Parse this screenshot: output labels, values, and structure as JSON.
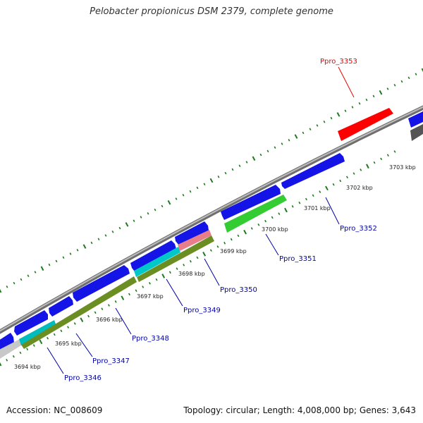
{
  "title": "Pelobacter propionicus DSM 2379, complete genome",
  "footer": {
    "accession": "Accession: NC_008609",
    "topology": "Topology: circular; Length: 4,008,000 bp; Genes: 3,643"
  },
  "colors": {
    "backbone": "#8c8c8c",
    "tick": "#1e7a1e",
    "forward_gene": "#1414e6",
    "label_default": "#0000aa",
    "label_highlight": "#ee0000"
  },
  "tick_labels": [
    "3694 kbp",
    "3695 kbp",
    "3696 kbp",
    "3697 kbp",
    "3698 kbp",
    "3699 kbp",
    "3700 kbp",
    "3701 kbp",
    "3702 kbp",
    "3703 kbp"
  ],
  "gene_labels": [
    {
      "text": "Ppro_3346",
      "color": "#0000aa"
    },
    {
      "text": "Ppro_3347",
      "color": "#0000aa"
    },
    {
      "text": "Ppro_3348",
      "color": "#0000aa"
    },
    {
      "text": "Ppro_3349",
      "color": "#0000aa"
    },
    {
      "text": "Ppro_3350",
      "color": "#0000aa"
    },
    {
      "text": "Ppro_3351",
      "color": "#0000aa"
    },
    {
      "text": "Ppro_3352",
      "color": "#0000aa"
    },
    {
      "text": "Ppro_3353",
      "color": "#ee0000"
    }
  ]
}
